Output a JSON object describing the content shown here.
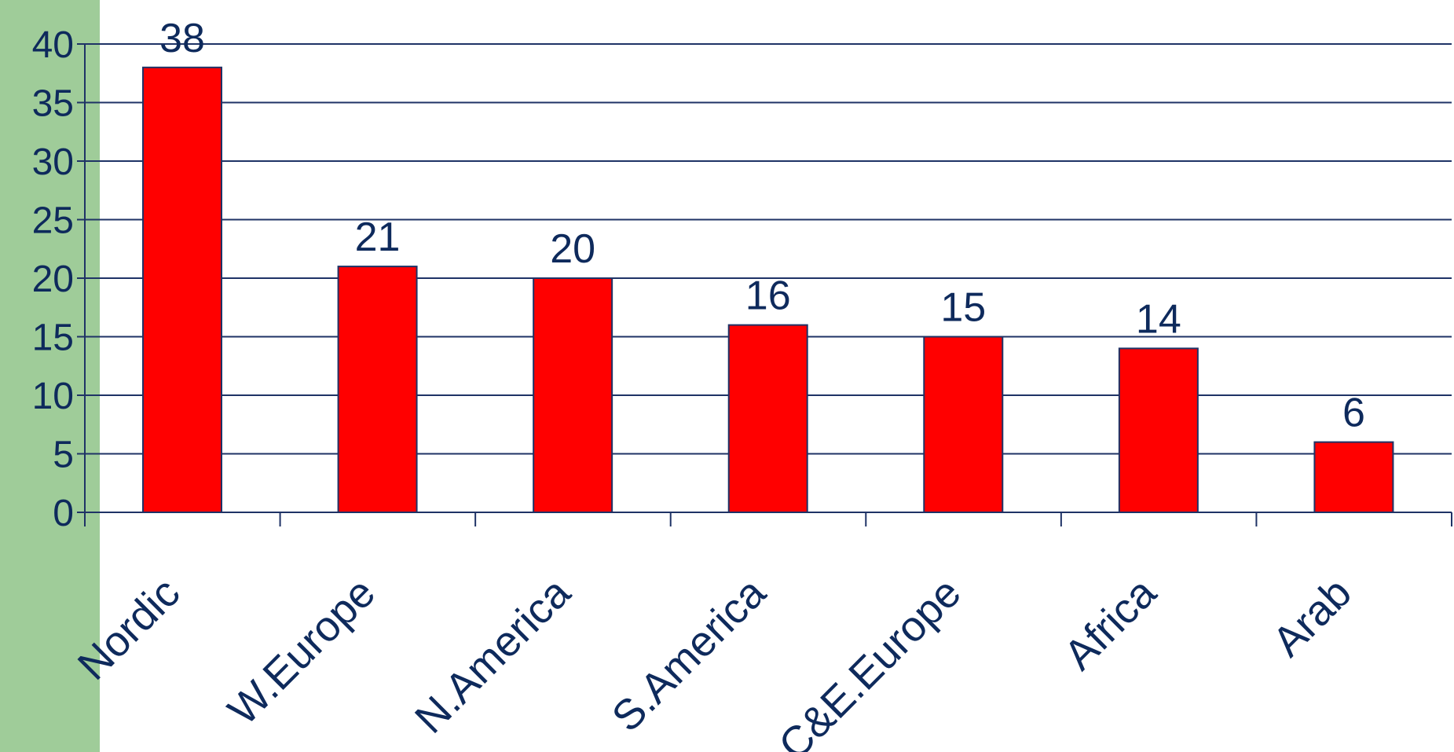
{
  "chart_data": {
    "type": "bar",
    "categories": [
      "Nordic",
      "W.Europe",
      "N.America",
      "S.America",
      "C&E.Europe",
      "Africa",
      "Arab"
    ],
    "values": [
      38,
      21,
      20,
      16,
      15,
      14,
      6
    ],
    "data_labels": [
      "38",
      "21",
      "20",
      "16",
      "15",
      "14",
      "6"
    ],
    "title": "",
    "xlabel": "",
    "ylabel": "",
    "ylim": [
      0,
      40
    ],
    "yticks": [
      "0",
      "5",
      "10",
      "15",
      "20",
      "25",
      "30",
      "35",
      "40"
    ],
    "grid": true,
    "legend": "none",
    "colors": {
      "bar_fill": "#ff0000",
      "bar_stroke": "#1f3366",
      "grid": "#1f3366",
      "text": "#0e2a5c",
      "side_band": "#9fcc99"
    }
  }
}
